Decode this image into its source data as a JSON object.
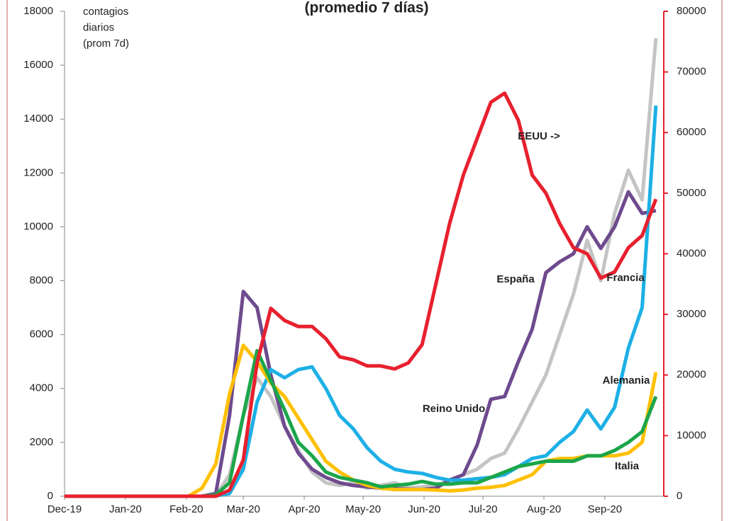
{
  "chart_data": {
    "type": "line",
    "title": "(promedio 7 días)",
    "annotation": [
      "contagios",
      "diarios",
      "(prom 7d)"
    ],
    "x": [
      0,
      56,
      63,
      70,
      77,
      84,
      91,
      98,
      105,
      112,
      119,
      126,
      133,
      140,
      147,
      154,
      161,
      168,
      175,
      182,
      189,
      196,
      203,
      210,
      217,
      224,
      231,
      238,
      245,
      252,
      259,
      266,
      273,
      280,
      287,
      294,
      301
    ],
    "xlim": [
      0,
      305
    ],
    "xticks": [
      {
        "value": 0,
        "label": "Dec-19"
      },
      {
        "value": 31,
        "label": "Jan-20"
      },
      {
        "value": 62,
        "label": "Feb-20"
      },
      {
        "value": 91,
        "label": "Mar-20"
      },
      {
        "value": 122,
        "label": "Apr-20"
      },
      {
        "value": 152,
        "label": "May-20"
      },
      {
        "value": 183,
        "label": "Jun-20"
      },
      {
        "value": 213,
        "label": "Jul-20"
      },
      {
        "value": 244,
        "label": "Aug-20"
      },
      {
        "value": 275,
        "label": "Sep-20"
      }
    ],
    "ylim": [
      0,
      18000
    ],
    "yticks": [
      0,
      2000,
      4000,
      6000,
      8000,
      10000,
      12000,
      14000,
      16000,
      18000
    ],
    "y2lim": [
      0,
      80000
    ],
    "y2ticks": [
      0,
      10000,
      20000,
      30000,
      40000,
      50000,
      60000,
      70000,
      80000
    ],
    "y2color": "#e8202e",
    "series": [
      {
        "name": "Francia",
        "color": "#c4c4c4",
        "values": [
          0,
          0,
          0,
          0,
          20,
          800,
          3000,
          4400,
          3700,
          2600,
          1700,
          900,
          500,
          400,
          500,
          300,
          400,
          500,
          300,
          350,
          400,
          600,
          800,
          1000,
          1400,
          1600,
          2500,
          3500,
          4500,
          6000,
          7500,
          9500,
          8000,
          10500,
          12100,
          11000,
          17000
        ]
      },
      {
        "name": "España",
        "color": "#6e4a8e",
        "values": [
          0,
          0,
          0,
          0,
          100,
          3000,
          7600,
          7000,
          4500,
          2600,
          1600,
          1000,
          700,
          500,
          400,
          350,
          300,
          280,
          260,
          250,
          300,
          600,
          800,
          1900,
          3600,
          3700,
          5000,
          6200,
          8300,
          8700,
          9000,
          10000,
          9200,
          10000,
          11300,
          10500,
          10600
        ]
      },
      {
        "name": "Reino Unido",
        "color": "#1db0e6",
        "values": [
          0,
          0,
          0,
          0,
          10,
          100,
          1000,
          3500,
          4700,
          4400,
          4700,
          4800,
          4000,
          3000,
          2500,
          1800,
          1300,
          1000,
          900,
          850,
          700,
          600,
          600,
          650,
          700,
          800,
          1100,
          1400,
          1500,
          2000,
          2400,
          3200,
          2500,
          3300,
          5500,
          7000,
          14500
        ]
      },
      {
        "name": "Italia",
        "color": "#ffc000",
        "values": [
          0,
          0,
          0,
          300,
          1200,
          3800,
          5600,
          5000,
          4200,
          3700,
          2900,
          2100,
          1300,
          900,
          600,
          400,
          300,
          250,
          250,
          250,
          230,
          200,
          230,
          300,
          330,
          400,
          600,
          800,
          1300,
          1400,
          1400,
          1500,
          1500,
          1500,
          1600,
          2000,
          4600
        ]
      },
      {
        "name": "Alemania",
        "color": "#1ba64a",
        "values": [
          0,
          0,
          0,
          0,
          50,
          500,
          3000,
          5400,
          4300,
          3200,
          2000,
          1500,
          900,
          700,
          600,
          500,
          350,
          400,
          450,
          550,
          450,
          450,
          500,
          500,
          700,
          900,
          1100,
          1200,
          1300,
          1300,
          1300,
          1500,
          1500,
          1700,
          2000,
          2400,
          3700
        ]
      },
      {
        "name": "EEUU ->",
        "color": "#e8202e",
        "axis": "y2",
        "values": [
          0,
          0,
          0,
          0,
          0,
          1000,
          6000,
          22000,
          31000,
          29000,
          28000,
          28000,
          26000,
          23000,
          22500,
          21500,
          21500,
          21000,
          22000,
          25000,
          35000,
          45000,
          53000,
          59000,
          65000,
          66500,
          62000,
          53000,
          50000,
          45000,
          41000,
          40000,
          36000,
          37000,
          41000,
          43000,
          49000
        ]
      }
    ]
  }
}
